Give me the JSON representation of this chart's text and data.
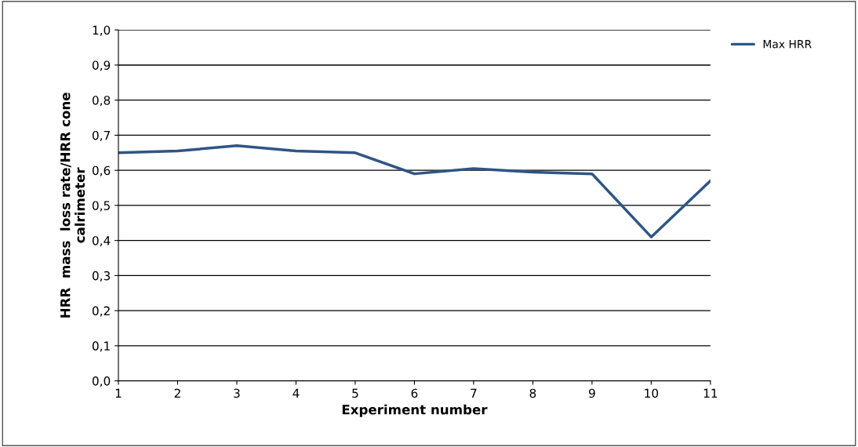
{
  "chart_data": {
    "type": "line",
    "xlabel": "Experiment number",
    "ylabel": "HRR  mass  loss rate/HRR cone\ncalrimeter",
    "categories": [
      "1",
      "2",
      "3",
      "4",
      "5",
      "6",
      "7",
      "8",
      "9",
      "10",
      "11"
    ],
    "series": [
      {
        "name": "Max HRR",
        "color": "#2f5584",
        "values": [
          0.65,
          0.655,
          0.67,
          0.655,
          0.65,
          0.59,
          0.605,
          0.595,
          0.59,
          0.41,
          0.57
        ]
      }
    ],
    "ylim": [
      0,
      1
    ],
    "yticks": [
      {
        "value": 0,
        "label": "0,0"
      },
      {
        "value": 0.1,
        "label": "0,1"
      },
      {
        "value": 0.2,
        "label": "0,2"
      },
      {
        "value": 0.3,
        "label": "0,3"
      },
      {
        "value": 0.4,
        "label": "0,4"
      },
      {
        "value": 0.5,
        "label": "0,5"
      },
      {
        "value": 0.6,
        "label": "0,6"
      },
      {
        "value": 0.7,
        "label": "0,7"
      },
      {
        "value": 0.8,
        "label": "0,8"
      },
      {
        "value": 0.9,
        "label": "0,9"
      },
      {
        "value": 1,
        "label": "1,0"
      }
    ],
    "grid": "y",
    "legend": "top right",
    "marker": "none",
    "line_style": "solid"
  }
}
